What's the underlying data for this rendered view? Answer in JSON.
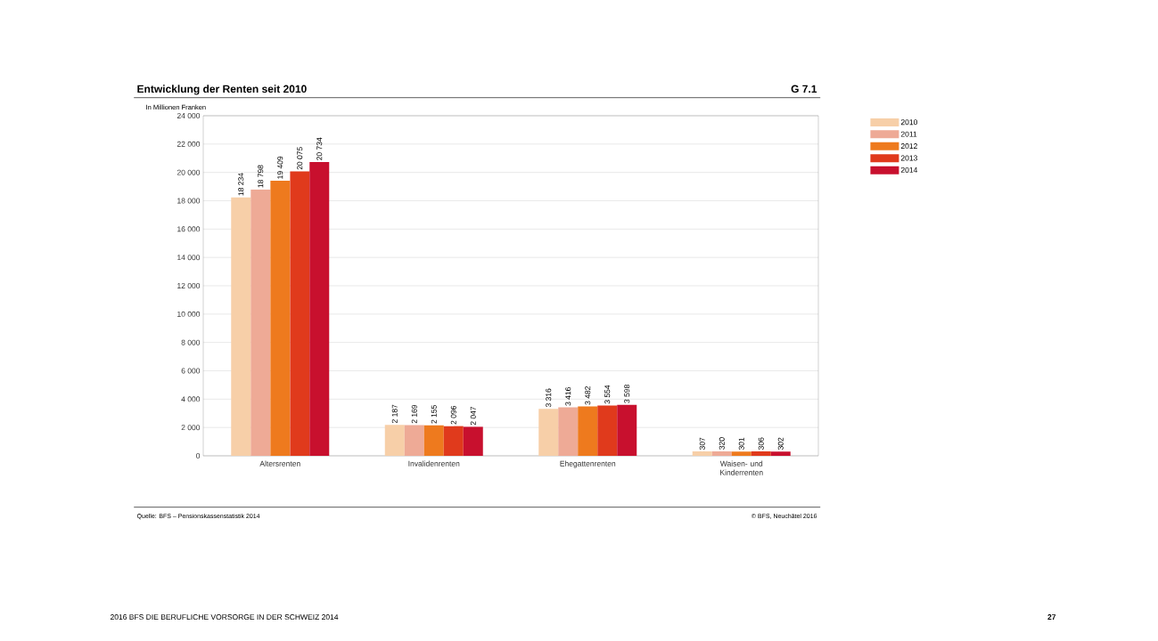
{
  "chart_data": {
    "type": "bar",
    "title": "Entwicklung der Renten seit 2010",
    "ylabel": "In Millionen Franken",
    "categories": [
      "Altersrenten",
      "Invalidenrenten",
      "Ehegattenrenten",
      "Waisen- und Kinderrenten"
    ],
    "series": [
      {
        "name": "2010",
        "color": "#f7cfa8",
        "values": [
          18234,
          2187,
          3316,
          307
        ],
        "value_labels": [
          "18 234",
          "2 187",
          "3 316",
          "307"
        ]
      },
      {
        "name": "2011",
        "color": "#eeaa96",
        "values": [
          18798,
          2169,
          3416,
          320
        ],
        "value_labels": [
          "18 798",
          "2 169",
          "3 416",
          "320"
        ]
      },
      {
        "name": "2012",
        "color": "#ee7a1e",
        "values": [
          19409,
          2155,
          3482,
          301
        ],
        "value_labels": [
          "19 409",
          "2 155",
          "3 482",
          "301"
        ]
      },
      {
        "name": "2013",
        "color": "#e03a1c",
        "values": [
          20075,
          2096,
          3554,
          306
        ],
        "value_labels": [
          "20 075",
          "2 096",
          "3 554",
          "306"
        ]
      },
      {
        "name": "2014",
        "color": "#c8102e",
        "values": [
          20734,
          2047,
          3598,
          302
        ],
        "value_labels": [
          "20 734",
          "2 047",
          "3 598",
          "302"
        ]
      }
    ],
    "ylim": [
      0,
      24000
    ],
    "yticks": [
      {
        "value": 0,
        "label": "0"
      },
      {
        "value": 2000,
        "label": "2 000"
      },
      {
        "value": 4000,
        "label": "4 000"
      },
      {
        "value": 6000,
        "label": "6 000"
      },
      {
        "value": 8000,
        "label": "8 000"
      },
      {
        "value": 10000,
        "label": "10 000"
      },
      {
        "value": 12000,
        "label": "12 000"
      },
      {
        "value": 14000,
        "label": "14 000"
      },
      {
        "value": 16000,
        "label": "16 000"
      },
      {
        "value": 18000,
        "label": "18 000"
      },
      {
        "value": 20000,
        "label": "20 000"
      },
      {
        "value": 22000,
        "label": "22 000"
      },
      {
        "value": 24000,
        "label": "24 000"
      }
    ],
    "grid": "y",
    "legend": "right",
    "annotations": [
      "G 7.1",
      "Quelle: BFS – Pensionskassenstatistik 2014",
      "© BFS, Neuchâtel 2016",
      "2016   BFS   DIE BERUFLICHE VORSORGE IN DER SCHWEIZ 2014",
      "27"
    ]
  }
}
